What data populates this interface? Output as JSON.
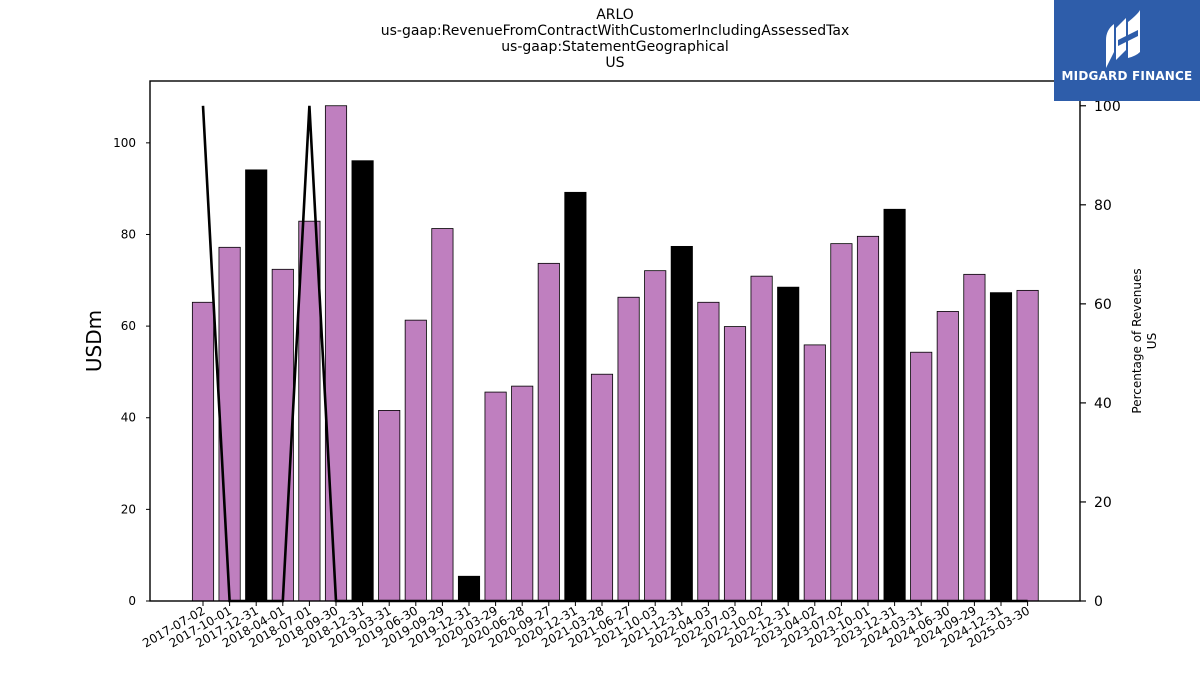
{
  "header": {
    "title_lines": [
      "ARLO",
      "us-gaap:RevenueFromContractWithCustomerIncludingAssessedTax",
      "us-gaap:StatementGeographical",
      "US"
    ]
  },
  "logo": {
    "text": "MIDGARD FINANCE",
    "icon": "midgard-logo-icon",
    "background": "#2e5daa"
  },
  "chart_data": {
    "type": "bar",
    "categories": [
      "2017-07-02",
      "2017-10-01",
      "2017-12-31",
      "2018-04-01",
      "2018-07-01",
      "2018-09-30",
      "2018-12-31",
      "2019-03-31",
      "2019-06-30",
      "2019-09-29",
      "2019-12-31",
      "2020-03-29",
      "2020-06-28",
      "2020-09-27",
      "2020-12-31",
      "2021-03-28",
      "2021-06-27",
      "2021-10-03",
      "2021-12-31",
      "2022-04-03",
      "2022-07-03",
      "2022-10-02",
      "2022-12-31",
      "2023-04-02",
      "2023-07-02",
      "2023-10-01",
      "2023-12-31",
      "2024-03-31",
      "2024-06-30",
      "2024-09-29",
      "2024-12-31",
      "2025-03-30"
    ],
    "values": [
      65.2,
      77.2,
      94.1,
      72.4,
      82.9,
      108.1,
      96.1,
      41.6,
      61.3,
      81.3,
      5.4,
      45.6,
      46.9,
      73.7,
      89.2,
      49.5,
      66.3,
      72.1,
      77.4,
      65.2,
      59.9,
      70.9,
      68.5,
      55.9,
      78.0,
      79.6,
      85.5,
      54.3,
      63.2,
      71.3,
      67.3,
      67.8
    ],
    "bar_colors": [
      "#bf7fbf",
      "#bf7fbf",
      "#000000",
      "#bf7fbf",
      "#bf7fbf",
      "#bf7fbf",
      "#000000",
      "#bf7fbf",
      "#bf7fbf",
      "#bf7fbf",
      "#000000",
      "#bf7fbf",
      "#bf7fbf",
      "#bf7fbf",
      "#000000",
      "#bf7fbf",
      "#bf7fbf",
      "#bf7fbf",
      "#000000",
      "#bf7fbf",
      "#bf7fbf",
      "#bf7fbf",
      "#000000",
      "#bf7fbf",
      "#bf7fbf",
      "#bf7fbf",
      "#000000",
      "#bf7fbf",
      "#bf7fbf",
      "#bf7fbf",
      "#000000",
      "#bf7fbf"
    ],
    "line_values": [
      100,
      0,
      0,
      0,
      100,
      0,
      0,
      0,
      0,
      0,
      0,
      0,
      0,
      0,
      0,
      0,
      0,
      0,
      0,
      0,
      0,
      0,
      0,
      0,
      0,
      0,
      0,
      0,
      0,
      0,
      0,
      0
    ],
    "ylabel": "USDm",
    "ylim": [
      0,
      113.5
    ],
    "yticks": [
      0,
      20,
      40,
      60,
      80,
      100
    ],
    "y2label": [
      "Percentage of Revenues",
      "US"
    ],
    "y2lim": [
      0,
      105
    ],
    "y2ticks": [
      0,
      20,
      40,
      60,
      80,
      100
    ],
    "grid": false,
    "colors": {
      "bar_primary": "#bf7fbf",
      "bar_highlight": "#000000",
      "line": "#000000"
    }
  }
}
